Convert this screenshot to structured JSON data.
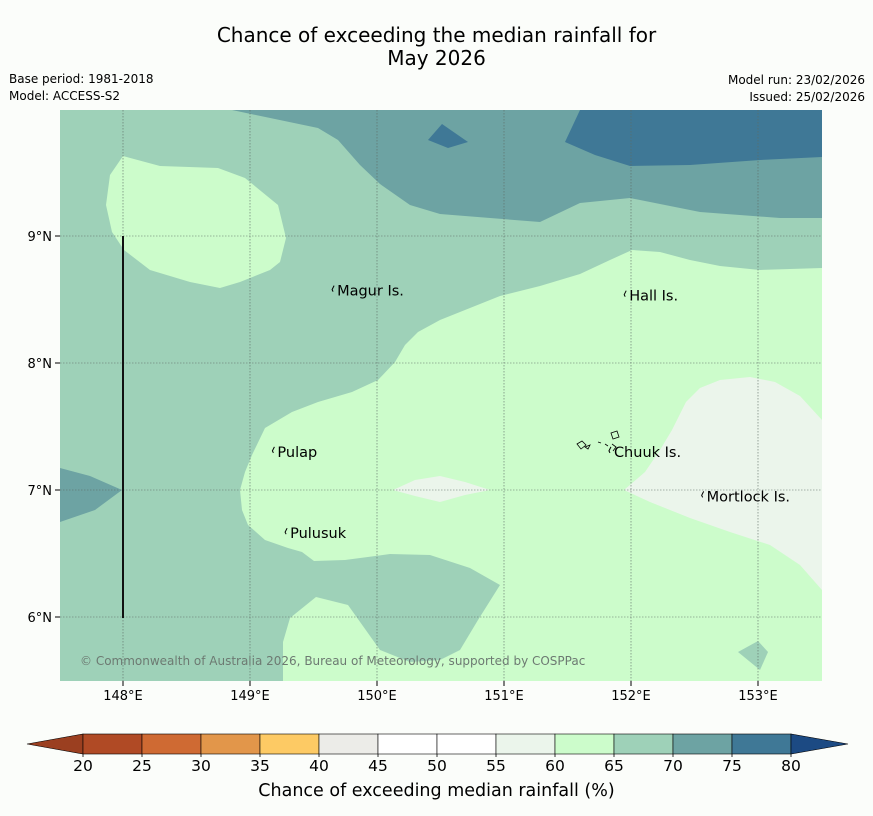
{
  "title": {
    "line1": "Chance of exceeding the median rainfall for",
    "line2": "May 2026"
  },
  "meta": {
    "base_period": "Base period: 1981-2018",
    "model": "Model: ACCESS-S2",
    "model_run": "Model run: 23/02/2026",
    "issued": "Issued: 25/02/2026"
  },
  "map": {
    "lon_ticks": [
      "148°E",
      "149°E",
      "150°E",
      "151°E",
      "152°E",
      "153°E"
    ],
    "lat_ticks": [
      "9°N",
      "8°N",
      "7°N",
      "6°N"
    ],
    "lon_range": [
      147.5,
      153.5
    ],
    "lat_range": [
      5.5,
      10.0
    ],
    "places": [
      {
        "name": "Magur Is.",
        "lon": 149.67,
        "lat": 8.57
      },
      {
        "name": "Hall Is.",
        "lon": 151.97,
        "lat": 8.53
      },
      {
        "name": "Pulap",
        "lon": 149.2,
        "lat": 7.3
      },
      {
        "name": "Chuuk Is.",
        "lon": 151.85,
        "lat": 7.3
      },
      {
        "name": "Mortlock Is.",
        "lon": 152.58,
        "lat": 6.95
      },
      {
        "name": "Pulusuk",
        "lon": 149.3,
        "lat": 6.66
      }
    ],
    "copyright": "© Commonwealth of Australia 2026, Bureau of Meteorology, supported by COSPPac"
  },
  "colorbar": {
    "ticks": [
      "20",
      "25",
      "30",
      "35",
      "40",
      "45",
      "50",
      "55",
      "60",
      "65",
      "70",
      "75",
      "80"
    ],
    "colors": [
      "#b04a25",
      "#cf6a33",
      "#e2964a",
      "#fdca64",
      "#ecece8",
      "#ffffff",
      "#ffffff",
      "#ebf5eb",
      "#ccfccb",
      "#9ed1b8",
      "#6da3a3",
      "#3f7896"
    ],
    "under_color": "#9b3f20",
    "over_color": "#1c4a83",
    "title": "Chance of exceeding median rainfall (%)"
  }
}
